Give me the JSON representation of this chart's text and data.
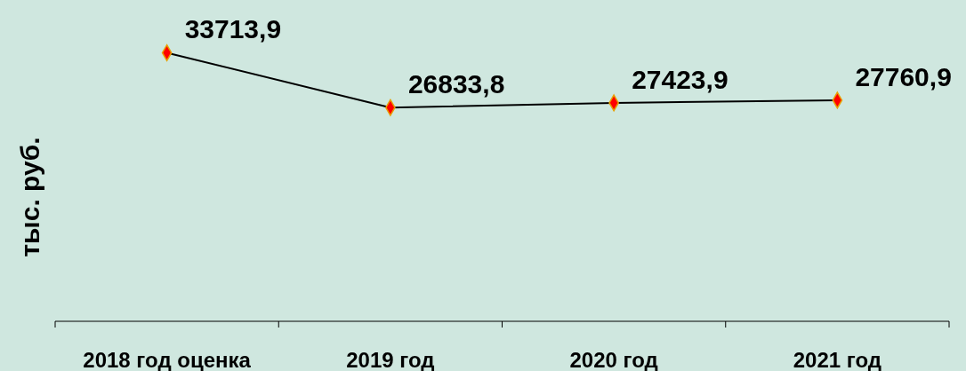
{
  "chart_data": {
    "type": "line",
    "ylabel": "тыс. руб.",
    "categories": [
      "2018 год оценка",
      "2019 год",
      "2020 год",
      "2021 год"
    ],
    "series": [
      {
        "color": "#000000",
        "values": [
          33713.9,
          26833.8,
          27423.9,
          27760.9
        ],
        "value_labels": [
          "33713,9",
          "26833,8",
          "27423,9",
          "27760,9"
        ]
      }
    ],
    "tick_labels": "x",
    "marker": "diamond"
  }
}
